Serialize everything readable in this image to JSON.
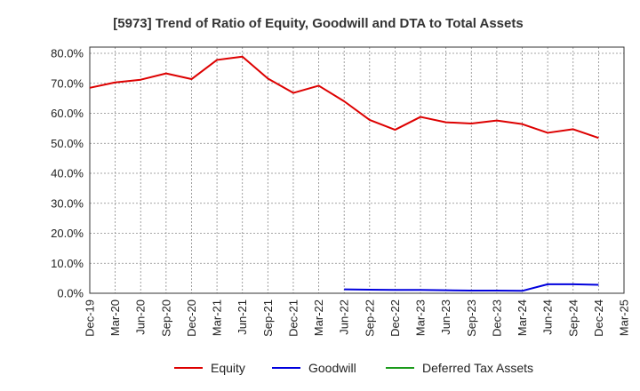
{
  "chart_data": {
    "type": "line",
    "title": "[5973]  Trend of Ratio of Equity, Goodwill and DTA to Total Assets",
    "xlabel": "",
    "ylabel": "",
    "ylim": [
      0,
      80
    ],
    "y_ticks": [
      0,
      10,
      20,
      30,
      40,
      50,
      60,
      70,
      80
    ],
    "y_tick_labels": [
      "0.0%",
      "10.0%",
      "20.0%",
      "30.0%",
      "40.0%",
      "50.0%",
      "60.0%",
      "70.0%",
      "80.0%"
    ],
    "x_tick_labels": [
      "Dec-19",
      "Mar-20",
      "Jun-20",
      "Sep-20",
      "Dec-20",
      "Mar-21",
      "Jun-21",
      "Sep-21",
      "Dec-21",
      "Mar-22",
      "Jun-22",
      "Sep-22",
      "Dec-22",
      "Mar-23",
      "Jun-23",
      "Sep-23",
      "Dec-23",
      "Mar-24",
      "Jun-24",
      "Sep-24",
      "Dec-24",
      "Mar-25"
    ],
    "grid": true,
    "legend_position": "bottom",
    "series": [
      {
        "name": "Equity",
        "color": "#dd0000",
        "values": [
          68.5,
          70.3,
          71.2,
          73.3,
          71.4,
          77.8,
          78.9,
          71.6,
          66.8,
          69.2,
          64.0,
          57.8,
          54.5,
          58.8,
          57.0,
          56.6,
          57.6,
          56.4,
          53.5,
          54.7,
          51.8,
          null
        ]
      },
      {
        "name": "Goodwill",
        "color": "#0000dd",
        "values": [
          null,
          null,
          null,
          null,
          null,
          null,
          null,
          null,
          null,
          null,
          1.3,
          1.2,
          1.1,
          1.1,
          1.0,
          0.9,
          0.9,
          0.8,
          3.0,
          3.0,
          2.8,
          null
        ]
      },
      {
        "name": "Deferred Tax Assets",
        "color": "#1a9a1a",
        "values": [
          null,
          null,
          null,
          null,
          null,
          null,
          null,
          null,
          null,
          null,
          null,
          null,
          null,
          null,
          null,
          null,
          null,
          null,
          null,
          null,
          null,
          null
        ]
      }
    ]
  }
}
